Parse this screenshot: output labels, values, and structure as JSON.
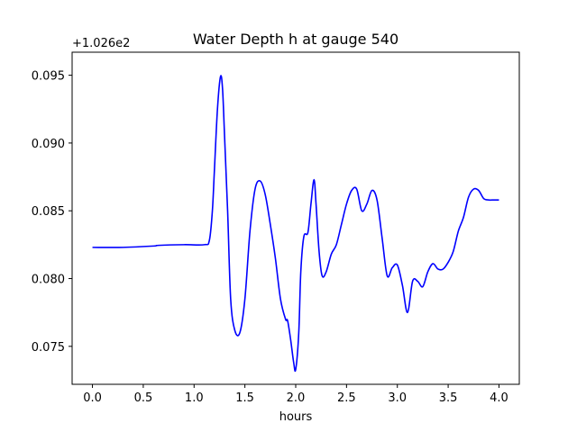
{
  "chart_data": {
    "type": "line",
    "title": "Water Depth h at gauge 540",
    "xlabel": "hours",
    "ylabel": "",
    "y_offset_text": "+1.026e2",
    "xlim": [
      -0.2,
      4.2
    ],
    "ylim": [
      0.0722,
      0.0967
    ],
    "x_ticks": [
      0.0,
      0.5,
      1.0,
      1.5,
      2.0,
      2.5,
      3.0,
      3.5,
      4.0
    ],
    "x_tick_labels": [
      "0.0",
      "0.5",
      "1.0",
      "1.5",
      "2.0",
      "2.5",
      "3.0",
      "3.5",
      "4.0"
    ],
    "y_ticks": [
      0.075,
      0.08,
      0.085,
      0.09,
      0.095
    ],
    "y_tick_labels": [
      "0.075",
      "0.080",
      "0.085",
      "0.090",
      "0.095"
    ],
    "grid": false,
    "line_color": "#0000ff",
    "series": [
      {
        "x": [
          0.0,
          0.3,
          0.6,
          0.65,
          0.9,
          1.1,
          1.15,
          1.18,
          1.2,
          1.23,
          1.26,
          1.28,
          1.3,
          1.33,
          1.36,
          1.4,
          1.45,
          1.5,
          1.55,
          1.6,
          1.65,
          1.7,
          1.75,
          1.8,
          1.85,
          1.9,
          1.92,
          1.95,
          1.98,
          2.0,
          2.03,
          2.05,
          2.08,
          2.12,
          2.15,
          2.18,
          2.2,
          2.23,
          2.26,
          2.3,
          2.35,
          2.4,
          2.45,
          2.5,
          2.55,
          2.6,
          2.65,
          2.7,
          2.75,
          2.8,
          2.85,
          2.9,
          2.95,
          3.0,
          3.05,
          3.1,
          3.15,
          3.2,
          3.25,
          3.3,
          3.35,
          3.4,
          3.45,
          3.5,
          3.55,
          3.6,
          3.65,
          3.7,
          3.75,
          3.8,
          3.85,
          3.9,
          3.95,
          4.0
        ],
        "y": [
          0.0823,
          0.0823,
          0.0824,
          0.08245,
          0.0825,
          0.0825,
          0.0828,
          0.085,
          0.088,
          0.0925,
          0.0949,
          0.094,
          0.0905,
          0.085,
          0.0785,
          0.0762,
          0.076,
          0.0785,
          0.0835,
          0.0866,
          0.0872,
          0.0862,
          0.084,
          0.0815,
          0.0785,
          0.077,
          0.0769,
          0.0755,
          0.0738,
          0.0733,
          0.076,
          0.0805,
          0.0831,
          0.0834,
          0.0855,
          0.0873,
          0.0855,
          0.082,
          0.0802,
          0.0805,
          0.0818,
          0.0825,
          0.084,
          0.0855,
          0.0865,
          0.0866,
          0.085,
          0.0855,
          0.0865,
          0.0858,
          0.083,
          0.0802,
          0.0808,
          0.081,
          0.0795,
          0.0775,
          0.0798,
          0.0798,
          0.0794,
          0.0805,
          0.0811,
          0.0807,
          0.0807,
          0.0812,
          0.082,
          0.0835,
          0.0845,
          0.086,
          0.0866,
          0.0865,
          0.0859,
          0.0858,
          0.0858,
          0.0858
        ]
      }
    ]
  }
}
